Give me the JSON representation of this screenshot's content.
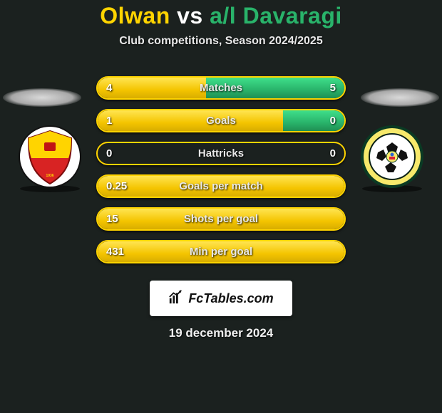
{
  "title": {
    "player1": "Olwan",
    "vs": "vs",
    "player2": "a/l Davaragi"
  },
  "subtitle": "Club competitions, Season 2024/2025",
  "colors": {
    "p1": "#ffd400",
    "p2": "#29b36a",
    "bg": "#1b211f",
    "border": "#ffd400"
  },
  "stats": [
    {
      "label": "Matches",
      "left_val": "4",
      "right_val": "5",
      "left_pct": 44,
      "right_pct": 56
    },
    {
      "label": "Goals",
      "left_val": "1",
      "right_val": "0",
      "left_pct": 75,
      "right_pct": 25
    },
    {
      "label": "Hattricks",
      "left_val": "0",
      "right_val": "0",
      "left_pct": 0,
      "right_pct": 0
    },
    {
      "label": "Goals per match",
      "left_val": "0.25",
      "right_val": "",
      "left_pct": 100,
      "right_pct": 0
    },
    {
      "label": "Shots per goal",
      "left_val": "15",
      "right_val": "",
      "left_pct": 100,
      "right_pct": 0
    },
    {
      "label": "Min per goal",
      "left_val": "431",
      "right_val": "",
      "left_pct": 100,
      "right_pct": 0
    }
  ],
  "logo_text": "FcTables.com",
  "date": "19 december 2024",
  "crest_left": {
    "base_fill": "#d82323",
    "top_fill": "#ffd400"
  },
  "crest_right": {
    "panel_colors": [
      "#fff",
      "#111"
    ]
  }
}
